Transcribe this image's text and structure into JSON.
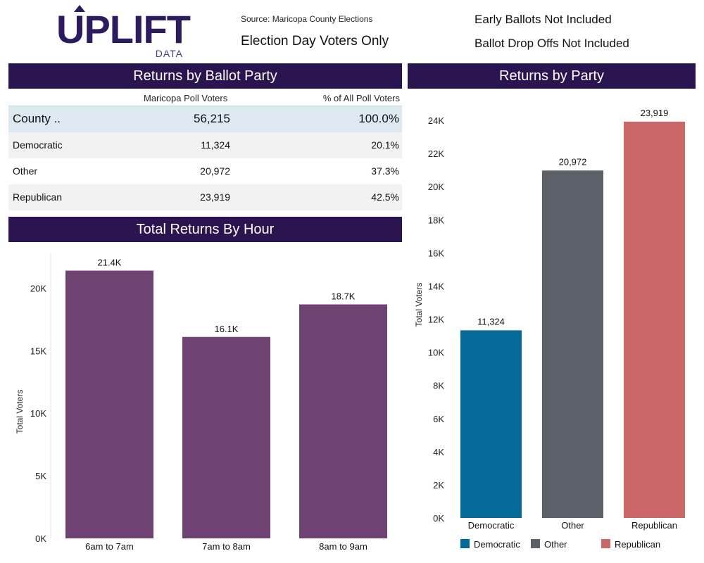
{
  "header": {
    "logo_word": "UPLIFT",
    "logo_sub": "DATA",
    "source": "Source: Maricopa County Elections",
    "scope": "Election Day Voters Only",
    "note_early": "Early Ballots Not Included",
    "note_dropoff": "Ballot Drop Offs Not Included"
  },
  "table": {
    "title": "Returns by Ballot Party",
    "columns": [
      "Maricopa Poll Voters",
      "% of All Poll Voters"
    ],
    "total": {
      "label": "County ..",
      "voters": "56,215",
      "pct": "100.0%"
    },
    "rows": [
      {
        "label": "Democratic",
        "voters": "11,324",
        "pct": "20.1%"
      },
      {
        "label": "Other",
        "voters": "20,972",
        "pct": "37.3%"
      },
      {
        "label": "Republican",
        "voters": "23,919",
        "pct": "42.5%"
      }
    ]
  },
  "hour_panel": {
    "title": "Total Returns By Hour"
  },
  "party_panel": {
    "title": "Returns by Party"
  },
  "colors": {
    "banner": "#2a1550",
    "hour_bar": "#6e4373",
    "Democratic": "#05699a",
    "Other": "#5c6068",
    "Republican": "#cc6768"
  },
  "chart_data": [
    {
      "type": "bar",
      "title": "Total Returns By Hour",
      "categories": [
        "6am to 7am",
        "7am to 8am",
        "8am to 9am"
      ],
      "values": [
        21400,
        16100,
        18700
      ],
      "data_labels": [
        "21.4K",
        "16.1K",
        "18.7K"
      ],
      "ylabel": "Total Voters",
      "ylim": [
        0,
        22500
      ],
      "yticks": [
        0,
        5000,
        10000,
        15000,
        20000
      ],
      "ytick_labels": [
        "0K",
        "5K",
        "10K",
        "15K",
        "20K"
      ]
    },
    {
      "type": "bar",
      "title": "Returns by Party",
      "categories": [
        "Democratic",
        "Other",
        "Republican"
      ],
      "values": [
        11324,
        20972,
        23919
      ],
      "data_labels": [
        "11,324",
        "20,972",
        "23,919"
      ],
      "ylabel": "Total Voters",
      "ylim": [
        0,
        25000
      ],
      "yticks": [
        0,
        2000,
        4000,
        6000,
        8000,
        10000,
        12000,
        14000,
        16000,
        18000,
        20000,
        22000,
        24000
      ],
      "ytick_labels": [
        "0K",
        "2K",
        "4K",
        "6K",
        "8K",
        "10K",
        "12K",
        "14K",
        "16K",
        "18K",
        "20K",
        "22K",
        "24K"
      ],
      "legend": [
        "Democratic",
        "Other",
        "Republican"
      ]
    }
  ]
}
